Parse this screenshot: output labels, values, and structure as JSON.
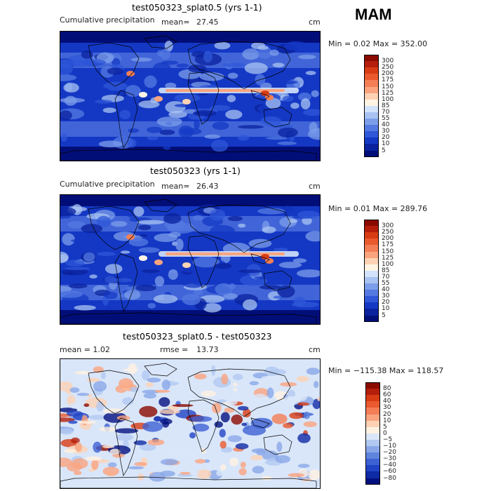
{
  "season": "MAM",
  "panels": [
    {
      "title": "test050323_splat0.5 (yrs 1-1)",
      "subtitle": "Cumulative precipitation",
      "stat_label": "mean=",
      "stat_value": "27.45",
      "units": "cm",
      "minmax": "Min =    0.02 Max = 352.00",
      "kind": "abs",
      "colorbar": {
        "labels": [
          "300",
          "250",
          "200",
          "175",
          "150",
          "125",
          "100",
          "85",
          "70",
          "55",
          "40",
          "30",
          "20",
          "10",
          "5"
        ],
        "colors": [
          "#8b0a00",
          "#b41e0a",
          "#d83c14",
          "#ea5a2e",
          "#f47e55",
          "#faa47f",
          "#fdd2b4",
          "#fff4e4",
          "#d3e3fb",
          "#a8c3f2",
          "#7c9ee9",
          "#5479e1",
          "#2f57d8",
          "#1438c4",
          "#0a229e",
          "#020e78"
        ]
      }
    },
    {
      "title": "test050323 (yrs 1-1)",
      "subtitle": "Cumulative precipitation",
      "stat_label": "mean=",
      "stat_value": "26.43",
      "units": "cm",
      "minmax": "Min =    0.01 Max = 289.76",
      "kind": "abs",
      "colorbar": {
        "labels": [
          "300",
          "250",
          "200",
          "175",
          "150",
          "125",
          "100",
          "85",
          "70",
          "55",
          "40",
          "30",
          "20",
          "10",
          "5"
        ],
        "colors": [
          "#8b0a00",
          "#b41e0a",
          "#d83c14",
          "#ea5a2e",
          "#f47e55",
          "#faa47f",
          "#fdd2b4",
          "#fff4e4",
          "#d3e3fb",
          "#a8c3f2",
          "#7c9ee9",
          "#5479e1",
          "#2f57d8",
          "#1438c4",
          "#0a229e",
          "#020e78"
        ]
      }
    },
    {
      "title": "test050323_splat0.5 - test050323",
      "subtitle": "mean =     1.02",
      "stat_label": "rmse =",
      "stat_value": "13.73",
      "units": "cm",
      "minmax": "Min = −115.38 Max = 118.57",
      "kind": "diff",
      "colorbar": {
        "labels": [
          "80",
          "60",
          "40",
          "30",
          "20",
          "10",
          "5",
          "0",
          "−5",
          "−10",
          "−20",
          "−30",
          "−40",
          "−60",
          "−80"
        ],
        "colors": [
          "#8b0a00",
          "#b41e0a",
          "#d83c14",
          "#ea5a2e",
          "#f47e55",
          "#faa47f",
          "#fdd2b4",
          "#fff1e2",
          "#d9e6f9",
          "#b1c9f1",
          "#89a7e8",
          "#5e84dd",
          "#3d62d4",
          "#2144c6",
          "#0f2aa5",
          "#031080"
        ]
      }
    }
  ]
}
